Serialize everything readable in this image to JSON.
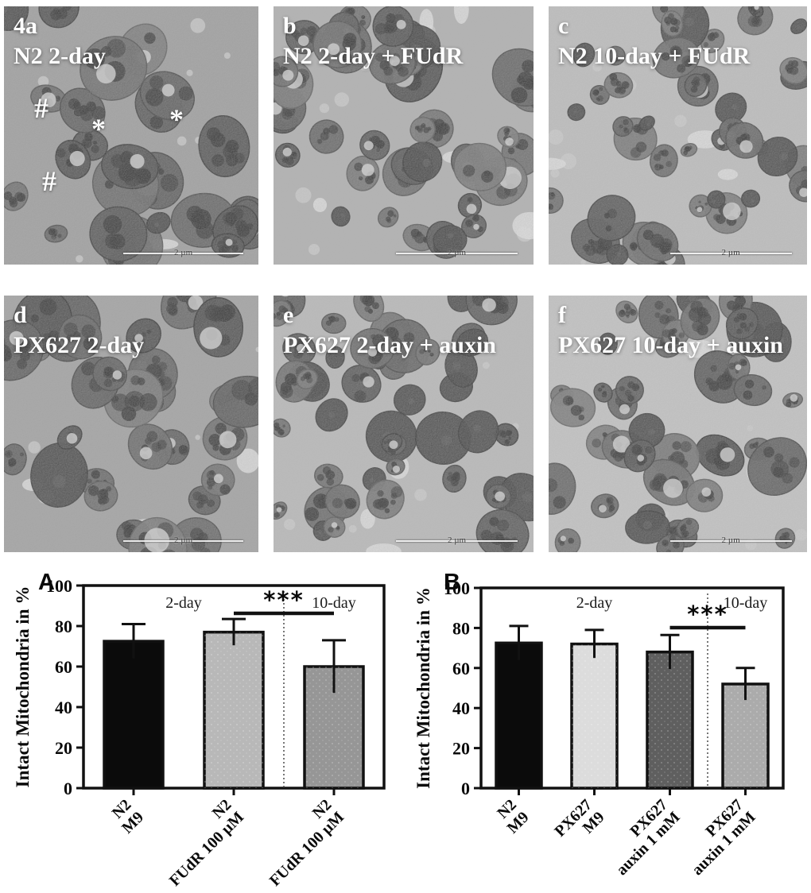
{
  "panels": [
    {
      "letter": "4a",
      "label": "N2 2-day",
      "scale_bar": "2 µm",
      "annotations": [
        "#",
        "*",
        "*",
        "#"
      ]
    },
    {
      "letter": "b",
      "label": "N2 2-day + FUdR",
      "scale_bar": "2 µm"
    },
    {
      "letter": "c",
      "label": "N2 10-day + FUdR",
      "scale_bar": "2 µm"
    },
    {
      "letter": "d",
      "label": "PX627 2-day",
      "scale_bar": "2 µm"
    },
    {
      "letter": "e",
      "label": "PX627 2-day + auxin",
      "scale_bar": "2 µm"
    },
    {
      "letter": "f",
      "label": "PX627 10-day + auxin",
      "scale_bar": "2 µm"
    }
  ],
  "chart_data": [
    {
      "type": "bar",
      "panel_label": "A",
      "ylabel": "Intact Mitochondria in %",
      "xlabel": "",
      "ylim": [
        0,
        100
      ],
      "yticks": [
        0,
        20,
        40,
        60,
        80,
        100
      ],
      "grid": false,
      "legend": null,
      "categories": [
        [
          "N2",
          "M9"
        ],
        [
          "N2",
          "FUdR 100 µM"
        ],
        [
          "N2",
          "FUdR 100 µM"
        ]
      ],
      "values": [
        72.5,
        77,
        60
      ],
      "errors": [
        8.5,
        6.5,
        13
      ],
      "bar_colors": [
        "#0b0b0b",
        "#b8b8b8",
        "#969696"
      ],
      "group_labels": [
        {
          "text": "2-day",
          "bars": [
            0,
            1
          ]
        },
        {
          "text": "10-day",
          "bars": [
            2
          ]
        }
      ],
      "divider_between": [
        1,
        2
      ],
      "significance": {
        "label": "***",
        "from_bar": 1,
        "to_bar": 2
      }
    },
    {
      "type": "bar",
      "panel_label": "B",
      "ylabel": "Intact Mitochondria in %",
      "xlabel": "",
      "ylim": [
        0,
        100
      ],
      "yticks": [
        0,
        20,
        40,
        60,
        80,
        100
      ],
      "grid": false,
      "legend": null,
      "categories": [
        [
          "N2",
          "M9"
        ],
        [
          "PX627",
          "M9"
        ],
        [
          "PX627",
          "auxin 1 mM"
        ],
        [
          "PX627",
          "auxin 1 mM"
        ]
      ],
      "values": [
        72.5,
        72,
        68,
        52
      ],
      "errors": [
        8.5,
        7,
        8.5,
        8
      ],
      "bar_colors": [
        "#0b0b0b",
        "#dcdcdc",
        "#5f5f5f",
        "#ababab"
      ],
      "group_labels": [
        {
          "text": "2-day",
          "bars": [
            0,
            1,
            2
          ]
        },
        {
          "text": "10-day",
          "bars": [
            3
          ]
        }
      ],
      "divider_between": [
        2,
        3
      ],
      "significance": {
        "label": "***",
        "from_bar": 2,
        "to_bar": 3
      }
    }
  ]
}
